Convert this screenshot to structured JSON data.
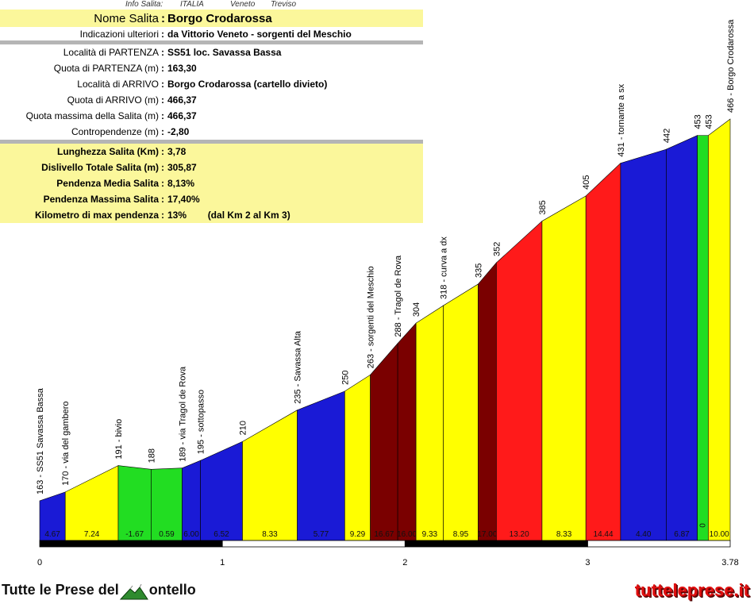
{
  "header": {
    "c1": "Info Salita:",
    "c2": "ITALIA",
    "c3": "Veneto",
    "c4": "Treviso"
  },
  "info": {
    "rows": [
      {
        "label": "Nome Salita",
        "value": "Borgo Crodarossa"
      },
      {
        "label": "Indicazioni ulteriori",
        "value": "da Vittorio Veneto - sorgenti del Meschio"
      },
      {
        "label": "Località di PARTENZA",
        "value": "SS51 loc. Savassa Bassa"
      },
      {
        "label": "Quota di PARTENZA (m)",
        "value": "163,30"
      },
      {
        "label": "Località di ARRIVO",
        "value": "Borgo Crodarossa (cartello divieto)"
      },
      {
        "label": "Quota di ARRIVO (m)",
        "value": "466,37"
      },
      {
        "label": "Quota massima della Salita (m)",
        "value": "466,37"
      },
      {
        "label": "Contropendenze (m)",
        "value": "-2,80"
      },
      {
        "label": "Lunghezza Salita (Km)",
        "value": "3,78"
      },
      {
        "label": "Dislivello Totale Salita (m)",
        "value": "305,87"
      },
      {
        "label": "Pendenza Media Salita",
        "value": "8,13%"
      },
      {
        "label": "Pendenza Massima Salita",
        "value": "17,40%"
      },
      {
        "label": "Kilometro di max pendenza",
        "value": "13%        (dal Km 2 al Km 3)"
      }
    ]
  },
  "chart_data": {
    "type": "area",
    "x_ticks": [
      "0",
      "1",
      "2",
      "3",
      "3.78"
    ],
    "x_tick_values": [
      0,
      1,
      2,
      3,
      3.78
    ],
    "xlim": [
      0,
      3.78
    ],
    "segments": [
      {
        "x0": 0.0,
        "x1": 0.14,
        "e0": 163,
        "e1": 170,
        "grade": "4.67",
        "color": "#1a1ad6"
      },
      {
        "x0": 0.14,
        "x1": 0.43,
        "e0": 170,
        "e1": 191,
        "grade": "7.24",
        "color": "#ffff00"
      },
      {
        "x0": 0.43,
        "x1": 0.61,
        "e0": 191,
        "e1": 188,
        "grade": "-1.67",
        "color": "#22dd22"
      },
      {
        "x0": 0.61,
        "x1": 0.78,
        "e0": 188,
        "e1": 189,
        "grade": "0.59",
        "color": "#22dd22"
      },
      {
        "x0": 0.78,
        "x1": 0.88,
        "e0": 189,
        "e1": 195,
        "grade": "6.00",
        "color": "#1a1ad6"
      },
      {
        "x0": 0.88,
        "x1": 1.11,
        "e0": 195,
        "e1": 210,
        "grade": "6.52",
        "color": "#1a1ad6"
      },
      {
        "x0": 1.11,
        "x1": 1.41,
        "e0": 210,
        "e1": 235,
        "grade": "8.33",
        "color": "#ffff00"
      },
      {
        "x0": 1.41,
        "x1": 1.67,
        "e0": 235,
        "e1": 250,
        "grade": "5.77",
        "color": "#1a1ad6"
      },
      {
        "x0": 1.67,
        "x1": 1.81,
        "e0": 250,
        "e1": 263,
        "grade": "9.29",
        "color": "#ffff00"
      },
      {
        "x0": 1.81,
        "x1": 1.96,
        "e0": 263,
        "e1": 288,
        "grade": "16.67",
        "color": "#7a0000"
      },
      {
        "x0": 1.96,
        "x1": 2.06,
        "e0": 288,
        "e1": 304,
        "grade": "16.00",
        "color": "#7a0000"
      },
      {
        "x0": 2.06,
        "x1": 2.21,
        "e0": 304,
        "e1": 318,
        "grade": "9.33",
        "color": "#ffff00"
      },
      {
        "x0": 2.21,
        "x1": 2.4,
        "e0": 318,
        "e1": 335,
        "grade": "8.95",
        "color": "#ffff00"
      },
      {
        "x0": 2.4,
        "x1": 2.5,
        "e0": 335,
        "e1": 352,
        "grade": "17.00",
        "color": "#7a0000"
      },
      {
        "x0": 2.5,
        "x1": 2.75,
        "e0": 352,
        "e1": 385,
        "grade": "13.20",
        "color": "#ff1a1a"
      },
      {
        "x0": 2.75,
        "x1": 2.99,
        "e0": 385,
        "e1": 405,
        "grade": "8.33",
        "color": "#ffff00"
      },
      {
        "x0": 2.99,
        "x1": 3.18,
        "e0": 405,
        "e1": 431,
        "grade": "14.44",
        "color": "#ff1a1a"
      },
      {
        "x0": 3.18,
        "x1": 3.43,
        "e0": 431,
        "e1": 442,
        "grade": "4.40",
        "color": "#1a1ad6"
      },
      {
        "x0": 3.43,
        "x1": 3.6,
        "e0": 442,
        "e1": 453,
        "grade": "6.87",
        "color": "#1a1ad6"
      },
      {
        "x0": 3.6,
        "x1": 3.66,
        "e0": 453,
        "e1": 453,
        "grade": "0",
        "color": "#22dd22"
      },
      {
        "x0": 3.66,
        "x1": 3.78,
        "e0": 453,
        "e1": 466,
        "grade": "10.00",
        "color": "#ffff00"
      }
    ],
    "points": [
      {
        "x": 0.0,
        "label": "163 - SS51 Savassa Bassa"
      },
      {
        "x": 0.14,
        "label": "170 - via del gambero"
      },
      {
        "x": 0.43,
        "label": "191 - bivio"
      },
      {
        "x": 0.61,
        "label": "188"
      },
      {
        "x": 0.78,
        "label": "189 - via Tragol de Rova"
      },
      {
        "x": 0.88,
        "label": "195 - sottopasso"
      },
      {
        "x": 1.11,
        "label": "210"
      },
      {
        "x": 1.41,
        "label": "235 - Savassa Alta"
      },
      {
        "x": 1.67,
        "label": "250"
      },
      {
        "x": 1.81,
        "label": "263 - sorgenti del Meschio"
      },
      {
        "x": 1.96,
        "label": "288 - Tragol de Rova"
      },
      {
        "x": 2.06,
        "label": "304"
      },
      {
        "x": 2.21,
        "label": "318 - curva a dx"
      },
      {
        "x": 2.4,
        "label": "335"
      },
      {
        "x": 2.5,
        "label": "352"
      },
      {
        "x": 2.75,
        "label": "385"
      },
      {
        "x": 2.99,
        "label": "405"
      },
      {
        "x": 3.18,
        "label": "431 - tornante a sx"
      },
      {
        "x": 3.43,
        "label": "442"
      },
      {
        "x": 3.6,
        "label": "453"
      },
      {
        "x": 3.66,
        "label": "453"
      },
      {
        "x": 3.78,
        "label": "466 - Borgo Crodarossa"
      }
    ]
  },
  "footer": {
    "left_a": "Tutte le Prese del",
    "left_b": "ontello",
    "right": "tutteleprese.it"
  }
}
